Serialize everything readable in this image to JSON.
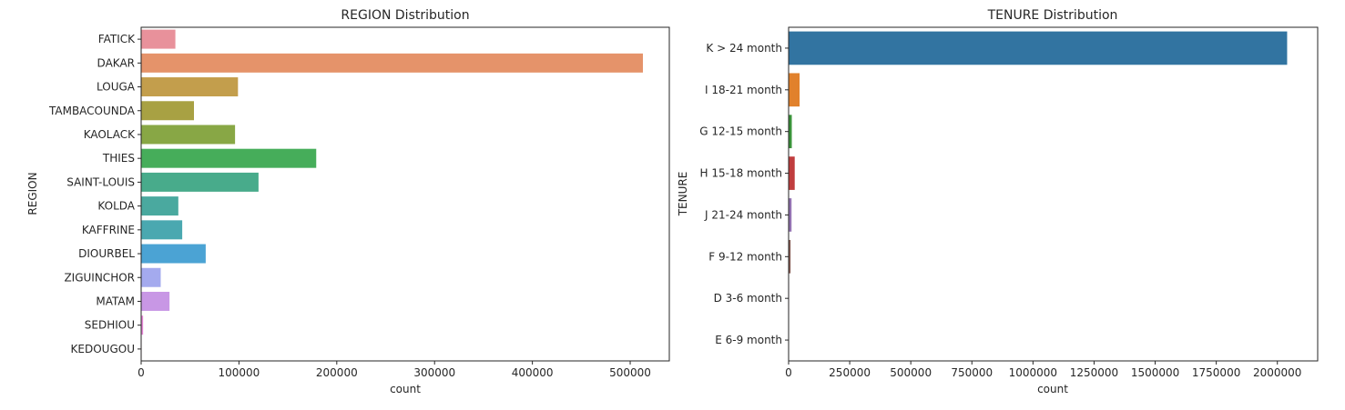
{
  "chart_data": [
    {
      "type": "bar",
      "orientation": "horizontal",
      "title": "REGION Distribution",
      "xlabel": "count",
      "ylabel": "REGION",
      "categories": [
        "FATICK",
        "DAKAR",
        "LOUGA",
        "TAMBACOUNDA",
        "KAOLACK",
        "THIES",
        "SAINT-LOUIS",
        "KOLDA",
        "KAFFRINE",
        "DIOURBEL",
        "ZIGUINCHOR",
        "MATAM",
        "SEDHIOU",
        "KEDOUGOU"
      ],
      "values": [
        35000,
        513000,
        99000,
        54000,
        96000,
        179000,
        120000,
        38000,
        42000,
        66000,
        20000,
        29000,
        2000,
        500
      ],
      "colors": [
        "#e8919b",
        "#e5936a",
        "#c39e4c",
        "#a8a143",
        "#88a745",
        "#46ad5a",
        "#48ab8b",
        "#4aa99f",
        "#4aa8b0",
        "#4ba3d4",
        "#a4aaee",
        "#c897e5",
        "#e586d6",
        "#e88bbd"
      ],
      "xticks": [
        0,
        100000,
        200000,
        300000,
        400000,
        500000
      ],
      "xlim": [
        0,
        540000
      ],
      "grid": false
    },
    {
      "type": "bar",
      "orientation": "horizontal",
      "title": "TENURE Distribution",
      "xlabel": "count",
      "ylabel": "TENURE",
      "categories": [
        "K > 24 month",
        "I 18-21 month",
        "G 12-15 month",
        "H 15-18 month",
        "J 21-24 month",
        "F 9-12 month",
        "D 3-6 month",
        "E 6-9 month"
      ],
      "values": [
        2040000,
        45000,
        13000,
        25000,
        12000,
        8000,
        2000,
        1500
      ],
      "colors": [
        "#3274a1",
        "#e1812c",
        "#3a923a",
        "#c03d3e",
        "#9372b2",
        "#845b53",
        "#d684bd",
        "#7f7f7f"
      ],
      "xticks": [
        0,
        250000,
        500000,
        750000,
        1000000,
        1250000,
        1500000,
        1750000,
        2000000
      ],
      "xlim": [
        0,
        2165000
      ],
      "grid": false
    }
  ]
}
